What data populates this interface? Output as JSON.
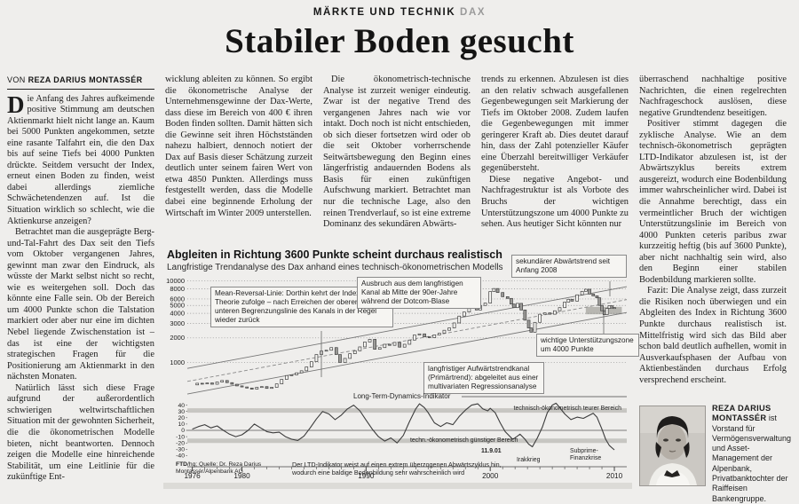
{
  "header": {
    "kicker": "MÄRKTE UND TECHNIK",
    "kicker_tag": "DAX",
    "title": "Stabiler Boden gesucht"
  },
  "byline": {
    "prefix": "VON",
    "author": "REZA DARIUS MONTASSÉR"
  },
  "article": {
    "dropcap": "D",
    "p1": "ie Anfang des Jahres aufkeimende positive Stimmung am deutschen Aktienmarkt hielt nicht lange an. Kaum bei 5000 Punkten angekommen, setzte eine rasante Talfahrt ein, die den Dax bis auf seine Tiefs bei 4000 Punkten drückte. Seitdem versucht der Index, erneut einen Boden zu finden, weist dabei allerdings ziemliche Schwächetendenzen auf. Ist die Situation wirklich so schlecht, wie die Aktienkurse anzeigen?",
    "p2": "Betrachtet man die ausgeprägte Berg-und-Tal-Fahrt des Dax seit den Tiefs vom Oktober vergangenen Jahres, gewinnt man zwar den Eindruck, als wüsste der Markt selbst nicht so recht, wie es weitergehen soll. Doch das könnte eine Falle sein. Ob der Bereich um 4000 Punkte schon die Talstation markiert oder aber nur eine im dichten Nebel liegende Zwischenstation ist – das ist eine der wichtigsten strategischen Fragen für die Positionierung am Aktienmarkt in den nächsten Monaten.",
    "p3": "Natürlich lässt sich diese Frage aufgrund der außerordentlich schwierigen weltwirtschaftlichen Situation mit der gewohnten Sicherheit, die die ökonometrischen Modelle bieten, nicht beantworten. Dennoch zeigen die Modelle eine hinreichende Stabilität, um eine Leitlinie für die zukünftige Ent-",
    "p4": "wicklung ableiten zu können. So ergibt die ökonometrische Analyse der Unternehmensgewinne der Dax-Werte, dass diese im Bereich von 400 € ihren Boden finden sollten. Damit hätten sich die Gewinne seit ihren Höchstständen nahezu halbiert, dennoch notiert der Dax auf Basis dieser Schätzung zurzeit deutlich unter seinem fairen Wert von etwa 4850 Punkten. Allerdings muss festgestellt werden, dass die Modelle dabei eine beginnende Erholung der Wirtschaft im Winter 2009 unterstellen.",
    "p5": "Die ökonometrisch-technische Analyse ist zurzeit weniger eindeutig. Zwar ist der negative Trend des vergangenen Jahres nach wie vor intakt. Doch noch ist nicht entschieden, ob sich dieser fortsetzen wird oder ob die seit Oktober vorherrschende Seitwärtsbewegung den Beginn eines längerfristig andauernden Bodens als Basis für einen zukünftigen Aufschwung markiert. Betrachtet man nur die technische Lage, also den reinen Trendverlauf, so ist eine extreme Dominanz des sekundären Abwärts-",
    "p6": "trends zu erkennen. Abzulesen ist dies an den relativ schwach ausgefallenen Gegenbewegungen seit Markierung der Tiefs im Oktober 2008. Zudem laufen die Gegenbewegungen mit immer geringerer Kraft ab. Dies deutet darauf hin, dass der Zahl potenzieller Käufer eine Überzahl bereitwilliger Verkäufer gegenübersteht.",
    "p7": "Diese negative Angebot- und Nachfragestruktur ist als Vorbote des Bruchs der wichtigen Unterstützungszone um 4000 Punkte zu sehen. Aus heutiger Sicht könnten nur",
    "p8": "überraschend nachhaltige positive Nachrichten, die einen regelrechten Nachfrageschock auslösen, diese negative Grundtendenz beseitigen.",
    "p9": "Positiver stimmt dagegen die zyklische Analyse. Wie an dem technisch-ökonometrisch geprägten LTD-Indikator abzulesen ist, ist der Abwärtszyklus bereits extrem ausgereizt, wodurch eine Bodenbildung immer wahrscheinlicher wird. Dabei ist die Annahme berechtigt, dass ein vermeintlicher Bruch der wichtigen Unterstützungslinie im Bereich von 4000 Punkten ceteris paribus zwar kurzzeitig heftig (bis auf 3600 Punkte), aber nicht nachhaltig sein wird, also den Beginn einer stabilen Bodenbildung markieren sollte.",
    "p10": "Fazit: Die Analyse zeigt, dass zurzeit die Risiken noch überwiegen und ein Abgleiten des Index in Richtung 3600 Punkte durchaus realistisch ist. Mittelfristig wird sich das Bild aber schon bald deutlich aufhellen, womit in Ausverkaufsphasen der Aufbau von Aktienbeständen durchaus Erfolg versprechend erscheint."
  },
  "bio": {
    "name": "REZA DARIUS MONTASSÉR",
    "text": " ist Vorstand für Vermögensverwaltung und Asset-Management der Alpenbank, Privatbanktochter der Raiffeisen Bankengruppe.",
    "photo_alt": "portrait-photo"
  },
  "chart_data": [
    {
      "type": "line",
      "style": "monthly-candles",
      "title": "Abgleiten in Richtung 3600 Punkte scheint durchaus realistisch",
      "subtitle": "Langfristige Trendanalyse des Dax anhand eines technisch-ökonometrischen Modells",
      "y_scale": "log",
      "y_ticks": [
        10000,
        8000,
        6000,
        5000,
        4000,
        3000,
        2000,
        1000
      ],
      "x_ticks": [
        1976,
        1980,
        1990,
        2000,
        2010
      ],
      "xlim": [
        1976,
        2010
      ],
      "channel": {
        "lower": [
          [
            1975.6,
            410
          ],
          [
            2011.0,
            4100
          ]
        ],
        "mean": [
          [
            1975.6,
            585
          ],
          [
            2011.0,
            5900
          ]
        ],
        "upper": [
          [
            1975.6,
            845
          ],
          [
            2011.0,
            8500
          ]
        ]
      },
      "support_zone": {
        "x": [
          2007.7,
          2010.6
        ],
        "y": [
          3900,
          4800
        ]
      },
      "annotations": {
        "mean_reversal": "Mean-Reversal-Linie: Dorthin kehrt der Index – der Theorie zufolge – nach Erreichen der oberen und unteren Begrenzungslinie des Kanals in der Regel wieder zurück",
        "ausbruch": "Ausbruch aus dem langfristigen Kanal ab Mitte der 90er-Jahre während der Dotcom-Blase",
        "sekundaer": "sekundärer Abwärtstrend seit Anfang 2008",
        "unterstuetzung": "wichtige Unterstützungszone um 4000 Punkte",
        "kanal": "langfristiger Aufwärtstrendkanal (Primärtrend): abgeleitet aus einer multivariaten Regressionsanalyse"
      },
      "series": [
        {
          "name": "Dax",
          "points": [
            [
              1976,
              530
            ],
            [
              1976.4,
              555
            ],
            [
              1976.8,
              545
            ],
            [
              1977.2,
              560
            ],
            [
              1977.6,
              540
            ],
            [
              1978,
              575
            ],
            [
              1978.4,
              600
            ],
            [
              1978.8,
              565
            ],
            [
              1979.2,
              540
            ],
            [
              1979.6,
              515
            ],
            [
              1980,
              500
            ],
            [
              1980.4,
              485
            ],
            [
              1980.8,
              470
            ],
            [
              1981.2,
              495
            ],
            [
              1981.6,
              505
            ],
            [
              1982,
              480
            ],
            [
              1982.4,
              495
            ],
            [
              1982.8,
              545
            ],
            [
              1983.2,
              620
            ],
            [
              1983.6,
              690
            ],
            [
              1984,
              705
            ],
            [
              1984.4,
              745
            ],
            [
              1984.8,
              790
            ],
            [
              1985.2,
              880
            ],
            [
              1985.6,
              1020
            ],
            [
              1986,
              1250
            ],
            [
              1986.4,
              1380
            ],
            [
              1986.8,
              1410
            ],
            [
              1987.2,
              1520
            ],
            [
              1987.6,
              1250
            ],
            [
              1987.9,
              1000
            ],
            [
              1988.3,
              1120
            ],
            [
              1988.7,
              1280
            ],
            [
              1989.1,
              1390
            ],
            [
              1989.5,
              1550
            ],
            [
              1989.9,
              1780
            ],
            [
              1990.3,
              1920
            ],
            [
              1990.7,
              1450
            ],
            [
              1991.1,
              1520
            ],
            [
              1991.5,
              1670
            ],
            [
              1991.9,
              1620
            ],
            [
              1992.3,
              1760
            ],
            [
              1992.7,
              1540
            ],
            [
              1993.1,
              1670
            ],
            [
              1993.5,
              1880
            ],
            [
              1993.9,
              2170
            ],
            [
              1994.3,
              2240
            ],
            [
              1994.7,
              2060
            ],
            [
              1995.1,
              2010
            ],
            [
              1995.5,
              2180
            ],
            [
              1995.9,
              2280
            ],
            [
              1996.3,
              2480
            ],
            [
              1996.7,
              2650
            ],
            [
              1997.1,
              3050
            ],
            [
              1997.5,
              3700
            ],
            [
              1997.9,
              4150
            ],
            [
              1998.3,
              5200
            ],
            [
              1998.6,
              5600
            ],
            [
              1998.9,
              4400
            ],
            [
              1999.2,
              5000
            ],
            [
              1999.6,
              5350
            ],
            [
              2000,
              7400
            ],
            [
              2000.3,
              8060
            ],
            [
              2000.6,
              7200
            ],
            [
              2001,
              6400
            ],
            [
              2001.4,
              6100
            ],
            [
              2001.7,
              5200
            ],
            [
              2001.9,
              4700
            ],
            [
              2002.2,
              5300
            ],
            [
              2002.5,
              4400
            ],
            [
              2002.8,
              3300
            ],
            [
              2003.1,
              2650
            ],
            [
              2003.3,
              2350
            ],
            [
              2003.6,
              3100
            ],
            [
              2004,
              3900
            ],
            [
              2004.4,
              4050
            ],
            [
              2004.8,
              3900
            ],
            [
              2005.2,
              4300
            ],
            [
              2005.6,
              4700
            ],
            [
              2006,
              5500
            ],
            [
              2006.3,
              5950
            ],
            [
              2006.6,
              5650
            ],
            [
              2007,
              6750
            ],
            [
              2007.4,
              7450
            ],
            [
              2007.7,
              7900
            ],
            [
              2008,
              6900
            ],
            [
              2008.3,
              6550
            ],
            [
              2008.6,
              6200
            ],
            [
              2008.8,
              5000
            ],
            [
              2009,
              4300
            ],
            [
              2009.2,
              3850
            ],
            [
              2009.4,
              4600
            ],
            [
              2009.6,
              4950
            ],
            [
              2009.8,
              4650
            ],
            [
              2010,
              4700
            ]
          ]
        }
      ]
    },
    {
      "type": "line",
      "name": "Long-Term-Dynamics-Indikator",
      "ylim": [
        -45,
        45
      ],
      "y_ticks": [
        40,
        30,
        20,
        10,
        0,
        -10,
        -20,
        -30,
        -40
      ],
      "bands": {
        "teuer": {
          "range": [
            28,
            35
          ],
          "label": "technisch-ökonometrisch teurer Bereich"
        },
        "guenstig": {
          "range": [
            -20,
            -13
          ],
          "label": "techn.-ökonometrisch günstiger Bereich"
        }
      },
      "events": {
        "sept11": "11.9.01",
        "irak": "Irakkrieg",
        "subprime_l1": "Subprime-",
        "subprime_l2": "Finanzkrise"
      },
      "caption": "Der LTD-Indikator weist auf einen extrem überzogenen Abwärtszyklus hin, wodurch eine baldige Bodenbildung sehr wahrscheinlich wird",
      "source_bold": "FTD",
      "source_rest": "/hg; Quelle: Dr. Reza Darius Montassér/Alpenbank AG",
      "points": [
        [
          1976,
          2
        ],
        [
          1976.5,
          6
        ],
        [
          1977,
          9
        ],
        [
          1977.5,
          4
        ],
        [
          1978,
          7
        ],
        [
          1978.5,
          0
        ],
        [
          1979,
          -6
        ],
        [
          1979.5,
          -10
        ],
        [
          1980,
          -7
        ],
        [
          1980.5,
          0
        ],
        [
          1981,
          10
        ],
        [
          1981.5,
          4
        ],
        [
          1982,
          -2
        ],
        [
          1982.5,
          -4
        ],
        [
          1983,
          -3
        ],
        [
          1983.5,
          -10
        ],
        [
          1984,
          -14
        ],
        [
          1984.5,
          -16
        ],
        [
          1985,
          -9
        ],
        [
          1985.5,
          4
        ],
        [
          1986,
          18
        ],
        [
          1986.5,
          30
        ],
        [
          1987,
          26
        ],
        [
          1987.5,
          17
        ],
        [
          1988,
          24
        ],
        [
          1988.5,
          34
        ],
        [
          1989,
          40
        ],
        [
          1989.5,
          31
        ],
        [
          1990,
          16
        ],
        [
          1990.5,
          2
        ],
        [
          1991,
          -10
        ],
        [
          1991.5,
          -17
        ],
        [
          1992,
          -12
        ],
        [
          1992.5,
          -20
        ],
        [
          1993,
          -8
        ],
        [
          1993.5,
          14
        ],
        [
          1994,
          34
        ],
        [
          1994.3,
          42
        ],
        [
          1994.7,
          36
        ],
        [
          1995,
          28
        ],
        [
          1995.5,
          12
        ],
        [
          1996,
          6
        ],
        [
          1996.5,
          12
        ],
        [
          1997,
          9
        ],
        [
          1997.5,
          22
        ],
        [
          1998,
          32
        ],
        [
          1998.5,
          40
        ],
        [
          1999,
          42
        ],
        [
          1999.4,
          34
        ],
        [
          1999.8,
          31
        ],
        [
          2000,
          35
        ],
        [
          2000.4,
          28
        ],
        [
          2000.8,
          12
        ],
        [
          2001.2,
          -2
        ],
        [
          2001.6,
          -10
        ],
        [
          2001.8,
          -14
        ],
        [
          2002,
          -12
        ],
        [
          2002.4,
          -6
        ],
        [
          2002.8,
          -14
        ],
        [
          2003.1,
          -22
        ],
        [
          2003.4,
          -26
        ],
        [
          2003.8,
          -12
        ],
        [
          2004.2,
          5
        ],
        [
          2004.6,
          28
        ],
        [
          2005,
          40
        ],
        [
          2005.3,
          43
        ],
        [
          2005.6,
          36
        ],
        [
          2006,
          26
        ],
        [
          2006.5,
          17
        ],
        [
          2007,
          21
        ],
        [
          2007.5,
          19
        ],
        [
          2008,
          24
        ],
        [
          2008.3,
          27
        ],
        [
          2008.6,
          21
        ],
        [
          2009,
          2
        ],
        [
          2009.3,
          -14
        ],
        [
          2009.6,
          -24
        ],
        [
          2010,
          -31
        ]
      ]
    }
  ]
}
